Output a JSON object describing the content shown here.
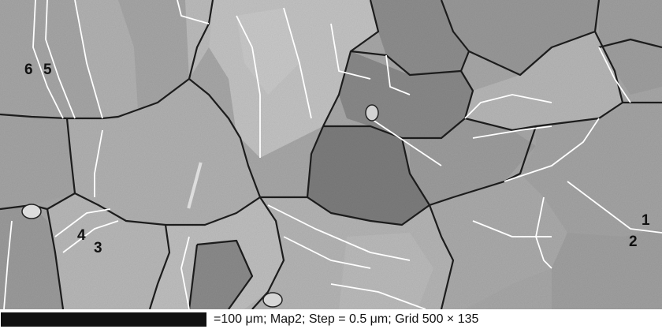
{
  "micrograph": {
    "grain_labels": [
      "1",
      "2",
      "3",
      "4",
      "5",
      "6"
    ],
    "colors": {
      "high_angle_boundary": "#1a1a1a",
      "twin_boundary": "#ffffff",
      "grain_light": "#bdbdbd",
      "grain_mid": "#a3a3a3",
      "grain_dark": "#808080"
    }
  },
  "scale_bar": {
    "caption": "=100 μm; Map2; Step = 0.5 μm; Grid 500 × 135"
  }
}
